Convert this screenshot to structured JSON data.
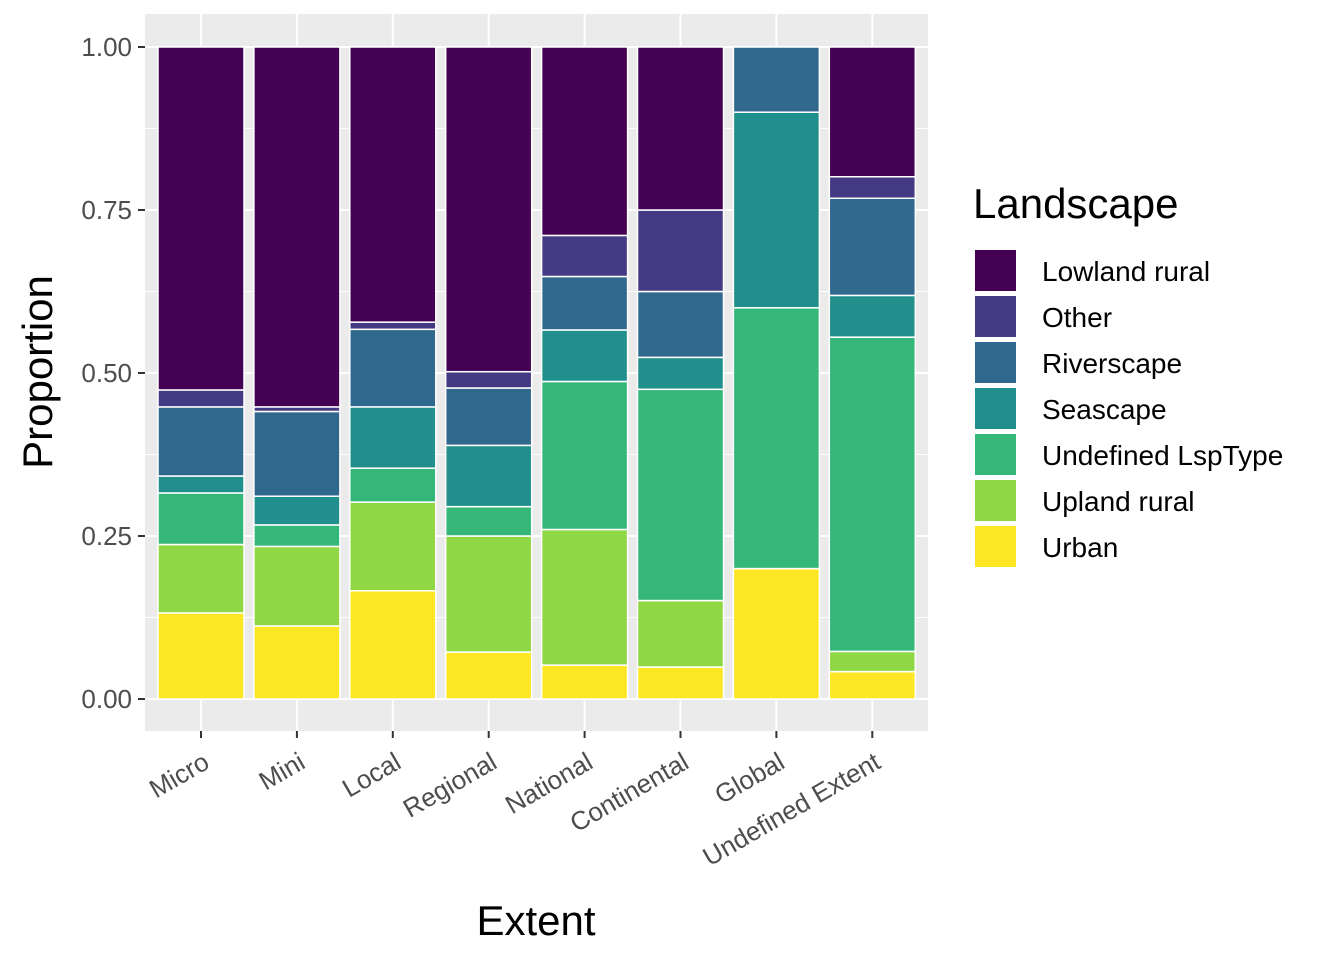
{
  "chart_data": {
    "type": "bar",
    "stacked": true,
    "title": "",
    "xlabel": "Extent",
    "ylabel": "Proportion",
    "ylim": [
      0,
      1
    ],
    "y_ticks": [
      "0.00",
      "0.25",
      "0.50",
      "0.75",
      "1.00"
    ],
    "grid": true,
    "legend_position": "right",
    "legend_title": "Landscape",
    "categories": [
      "Micro",
      "Mini",
      "Local",
      "Regional",
      "National",
      "Continental",
      "Global",
      "Undefined Extent"
    ],
    "series": [
      {
        "name": "Urban",
        "color": "#FDE725",
        "values": [
          0.132,
          0.112,
          0.166,
          0.072,
          0.052,
          0.049,
          0.2,
          0.042
        ]
      },
      {
        "name": "Upland rural",
        "color": "#8FD744",
        "values": [
          0.105,
          0.122,
          0.136,
          0.178,
          0.208,
          0.102,
          0.0,
          0.031
        ]
      },
      {
        "name": "Undefined LspType",
        "color": "#35B779",
        "values": [
          0.079,
          0.033,
          0.052,
          0.045,
          0.227,
          0.324,
          0.4,
          0.482
        ]
      },
      {
        "name": "Seascape",
        "color": "#21908C",
        "values": [
          0.026,
          0.044,
          0.094,
          0.094,
          0.079,
          0.049,
          0.3,
          0.064
        ]
      },
      {
        "name": "Riverscape",
        "color": "#31688E",
        "values": [
          0.106,
          0.13,
          0.119,
          0.088,
          0.082,
          0.101,
          0.1,
          0.149
        ]
      },
      {
        "name": "Other",
        "color": "#443A83",
        "values": [
          0.026,
          0.007,
          0.011,
          0.025,
          0.063,
          0.125,
          0.0,
          0.033
        ]
      },
      {
        "name": "Lowland rural",
        "color": "#440154",
        "values": [
          0.526,
          0.552,
          0.422,
          0.498,
          0.289,
          0.25,
          0.0,
          0.199
        ]
      }
    ],
    "legend_order": [
      "Lowland rural",
      "Other",
      "Riverscape",
      "Seascape",
      "Undefined LspType",
      "Upland rural",
      "Urban"
    ]
  }
}
